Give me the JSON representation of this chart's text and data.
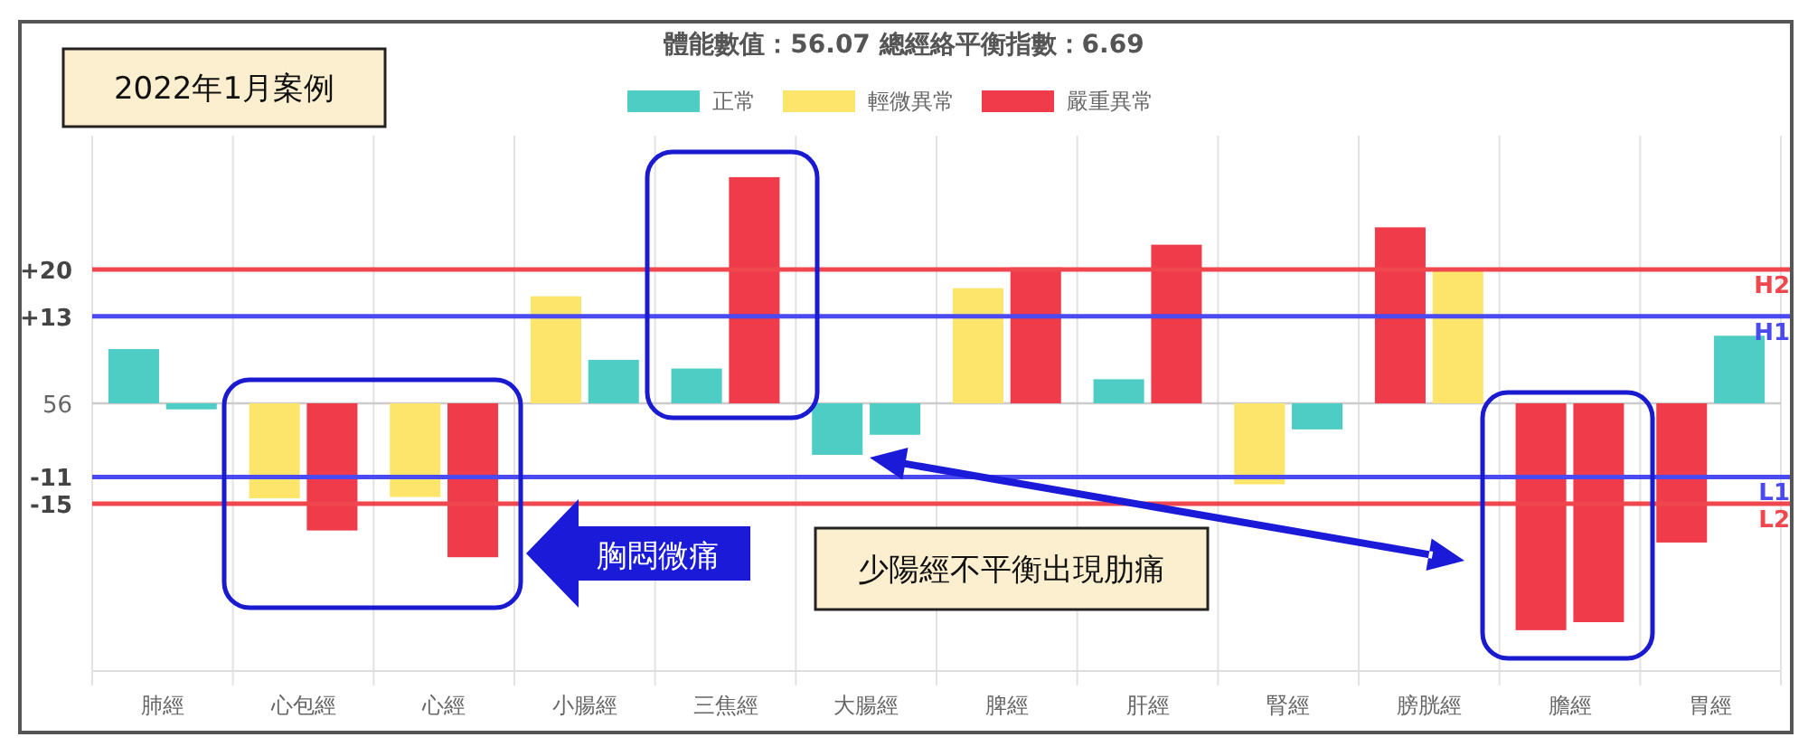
{
  "chart_data": {
    "type": "bar",
    "title": "體能數值：56.07 總經絡平衡指數：6.69",
    "categories": [
      "肺經",
      "心包經",
      "心經",
      "小腸經",
      "三焦經",
      "大腸經",
      "脾經",
      "肝經",
      "腎經",
      "膀胱經",
      "膽經",
      "胃經"
    ],
    "series": [
      {
        "colors": [
          "#4ecdc4",
          "#fde46a",
          "#fde46a",
          "#fde46a",
          "#4ecdc4",
          "#4ecdc4",
          "#fde46a",
          "#4ecdc4",
          "#fde46a",
          "#ef3b4a",
          "#ef3b4a",
          "#ef3b4a"
        ],
        "values": [
          8.1,
          -14.2,
          -14,
          16,
          5.2,
          -7.7,
          17.2,
          3.6,
          -12.1,
          26.3,
          -33.9,
          -20.8
        ]
      },
      {
        "colors": [
          "#4ecdc4",
          "#ef3b4a",
          "#ef3b4a",
          "#4ecdc4",
          "#ef3b4a",
          "#4ecdc4",
          "#ef3b4a",
          "#ef3b4a",
          "#4ecdc4",
          "#fde46a",
          "#ef3b4a",
          "#4ecdc4"
        ],
        "values": [
          -0.9,
          -19,
          -23,
          6.5,
          33.8,
          -4.7,
          20.3,
          23.7,
          -3.9,
          20,
          -32.7,
          10.1
        ]
      },
      {
        "name": "正常",
        "color": "#4ecdc4",
        "values": [
          null,
          null,
          null,
          null,
          null,
          null,
          null,
          null,
          null,
          null,
          null,
          null
        ]
      },
      {
        "name": "輕微異常",
        "color": "#fde46a",
        "values": [
          null,
          null,
          null,
          null,
          null,
          null,
          null,
          null,
          null,
          null,
          null,
          null
        ]
      },
      {
        "name": "嚴重異常",
        "color": "#ef3b4a",
        "values": [
          null,
          null,
          null,
          null,
          null,
          null,
          null,
          null,
          null,
          null,
          null,
          null
        ]
      }
    ],
    "ylim": [
      -40,
      40
    ],
    "yticks": [
      {
        "value": 20,
        "label": "+20"
      },
      {
        "value": 13,
        "label": "+13"
      },
      {
        "value": -11,
        "label": "-11"
      },
      {
        "value": -15,
        "label": "-15"
      }
    ],
    "ref_lines": [
      {
        "axis": "y",
        "value": 20,
        "label": "H2",
        "color": "#f0474f"
      },
      {
        "axis": "y",
        "value": 13,
        "label": "H1",
        "color": "#4a4af0"
      },
      {
        "axis": "y",
        "value": -11,
        "label": "L1",
        "color": "#4a4af0"
      },
      {
        "axis": "y",
        "value": -15,
        "label": "L2",
        "color": "#f0474f"
      }
    ],
    "annotations": [
      "2022年1月案例",
      "胸悶微痛",
      "少陽經不平衡出現肋痛",
      "56"
    ],
    "grid": "x",
    "legend": "top"
  }
}
